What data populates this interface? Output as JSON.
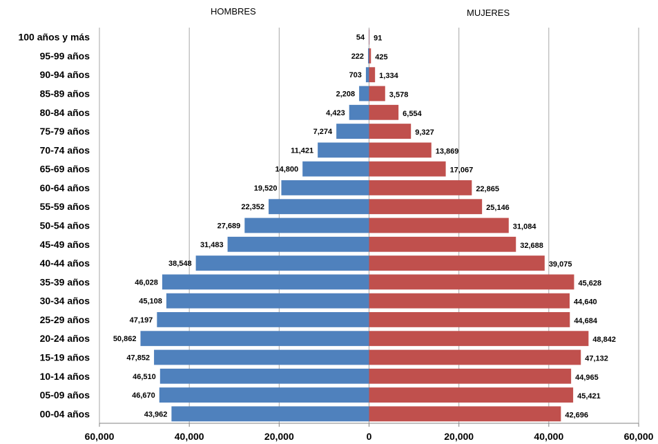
{
  "chart_data": {
    "type": "bar",
    "orientation": "horizontal",
    "subtype": "population-pyramid",
    "headers": {
      "left": "HOMBRES",
      "right": "MUJERES"
    },
    "categories": [
      "100 años y más",
      "95-99 años",
      "90-94 años",
      "85-89 años",
      "80-84 años",
      "75-79 años",
      "70-74 años",
      "65-69 años",
      "60-64 años",
      "55-59 años",
      "50-54 años",
      "45-49 años",
      "40-44 años",
      "35-39 años",
      "30-34 años",
      "25-29 años",
      "20-24 años",
      "15-19 años",
      "10-14 años",
      "05-09 años",
      "00-04 años"
    ],
    "series": [
      {
        "name": "HOMBRES",
        "color": "#4f81bd",
        "values": [
          54,
          222,
          703,
          2208,
          4423,
          7274,
          11421,
          14800,
          19520,
          22352,
          27689,
          31483,
          38548,
          46028,
          45108,
          47197,
          50862,
          47852,
          46510,
          46670,
          43962
        ],
        "labels": [
          "54",
          "222",
          "703",
          "2,208",
          "4,423",
          "7,274",
          "11,421",
          "14,800",
          "19,520",
          "22,352",
          "27,689",
          "31,483",
          "38,548",
          "46,028",
          "45,108",
          "47,197",
          "50,862",
          "47,852",
          "46,510",
          "46,670",
          "43,962"
        ]
      },
      {
        "name": "MUJERES",
        "color": "#c0504d",
        "values": [
          91,
          425,
          1334,
          3578,
          6554,
          9327,
          13869,
          17067,
          22865,
          25146,
          31084,
          32688,
          39075,
          45628,
          44640,
          44684,
          48842,
          47132,
          44965,
          45421,
          42696
        ],
        "labels": [
          "91",
          "425",
          "1,334",
          "3,578",
          "6,554",
          "9,327",
          "13,869",
          "17,067",
          "22,865",
          "25,146",
          "31,084",
          "32,688",
          "39,075",
          "45,628",
          "44,640",
          "44,684",
          "48,842",
          "47,132",
          "44,965",
          "45,421",
          "42,696"
        ]
      }
    ],
    "xlim": [
      -60000,
      60000
    ],
    "xticks": [
      -60000,
      -40000,
      -20000,
      0,
      20000,
      40000,
      60000
    ],
    "xtick_labels": [
      "60,000",
      "40,000",
      "20,000",
      "0",
      "20,000",
      "40,000",
      "60,000"
    ],
    "grid": "vertical"
  }
}
